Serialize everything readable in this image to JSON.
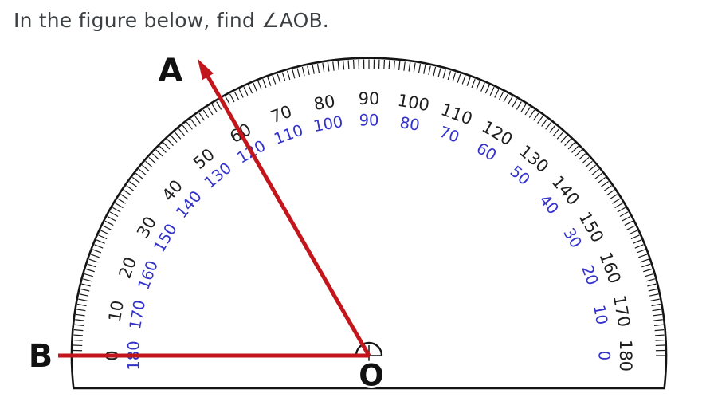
{
  "page": {
    "title": "In the figure below, find ∠AOB."
  },
  "figure": {
    "description": "Protractor with vertex O, horizontal red ray OB at 0 degrees and red arrowed ray OA at 60 degrees on the outer scale",
    "point_labels": {
      "a": "A",
      "b": "B",
      "vertex": "O"
    },
    "rays": {
      "oa": {
        "outer_scale_reading_deg": 60,
        "inner_scale_reading_deg": 120,
        "arrowhead": true
      },
      "ob": {
        "outer_scale_reading_deg": 0,
        "inner_scale_reading_deg": 180,
        "arrowhead": false
      }
    },
    "protractor": {
      "outer_scale_black": [
        0,
        10,
        20,
        30,
        40,
        50,
        60,
        70,
        80,
        90,
        100,
        110,
        120,
        130,
        140,
        150,
        160,
        170,
        180
      ],
      "inner_scale_blue": [
        180,
        170,
        160,
        150,
        140,
        130,
        120,
        110,
        100,
        90,
        80,
        70,
        60,
        50,
        40,
        30,
        20,
        10,
        0
      ],
      "fine_tick_step_deg": 1,
      "medium_tick_step_deg": 5,
      "labeled_step_deg": 10
    },
    "colors": {
      "ray_red": "#c3161c",
      "outer_label_black": "#1f1f1f",
      "inner_label_blue": "#3333cc",
      "outline_black": "#141414",
      "spoke_gray": "#4d4d4d",
      "tick_black": "#1a1a1a",
      "title_gray": "#3c4043"
    }
  }
}
